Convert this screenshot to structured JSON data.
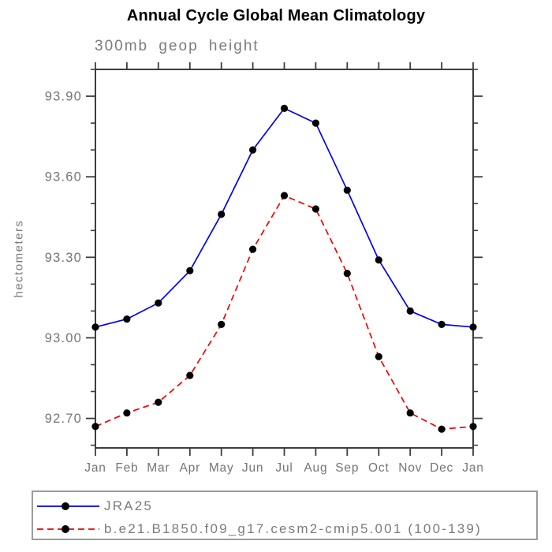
{
  "chart_data": {
    "type": "line",
    "title": "Annual Cycle Global Mean Climatology",
    "subtitle": "300mb geop height",
    "ylabel": "hectometers",
    "xlabel": "",
    "categories": [
      "Jan",
      "Feb",
      "Mar",
      "Apr",
      "May",
      "Jun",
      "Jul",
      "Aug",
      "Sep",
      "Oct",
      "Nov",
      "Dec",
      "Jan"
    ],
    "series": [
      {
        "name": "JRA25",
        "color": "#0000f2",
        "style": "solid",
        "marker": "filled-circle",
        "values": [
          93.04,
          93.07,
          93.13,
          93.25,
          93.46,
          93.7,
          93.855,
          93.8,
          93.55,
          93.29,
          93.1,
          93.05,
          93.04
        ]
      },
      {
        "name": "b.e21.B1850.f09_g17.cesm2-cmip5.001 (100-139)",
        "color": "#f40000",
        "style": "dashed",
        "marker": "filled-circle",
        "values": [
          92.67,
          92.72,
          92.76,
          92.86,
          93.05,
          93.33,
          93.53,
          93.48,
          93.24,
          92.93,
          92.72,
          92.66,
          92.67
        ]
      }
    ],
    "ylim": [
      92.59,
      94.0
    ],
    "yticks_major": [
      93.9,
      93.6,
      93.3,
      93.0,
      92.7
    ],
    "ytick_minor_step": 0.1,
    "ytick_label_format": "2-decimals",
    "grid": false,
    "legend_position": "bottom",
    "marker_color": "#000000"
  },
  "colors": {
    "axis": "#3d3d3d",
    "tick_text": "#757575",
    "title_text": "#000000",
    "subtitle_text": "#7b7b7b",
    "legend_border": "#9b9b9b",
    "legend_text": "#7b7b7b"
  }
}
